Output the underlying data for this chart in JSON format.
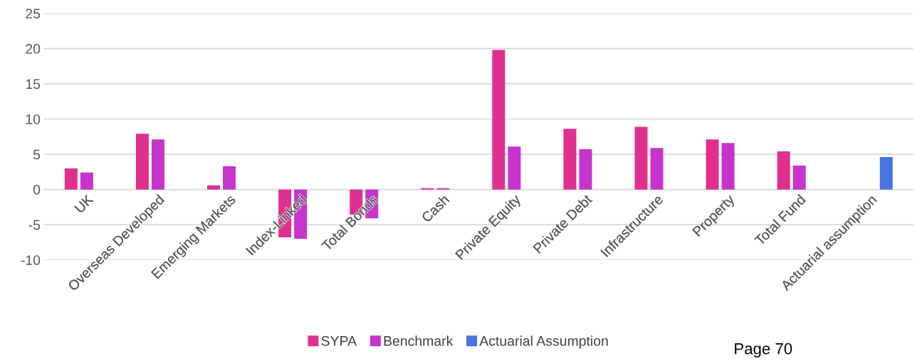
{
  "chart_data": {
    "type": "bar",
    "categories": [
      "UK",
      "Overseas Developed",
      "Emerging Markets",
      "Index-Linked",
      "Total Bonds",
      "Cash",
      "Private Equity",
      "Private Debt",
      "Infrastructure",
      "Property",
      "Total Fund",
      "Actuarial assumption"
    ],
    "series": [
      {
        "name": "SYPA",
        "color": "#e0308f",
        "values": [
          3.0,
          7.9,
          0.6,
          -6.8,
          -3.6,
          0.2,
          19.8,
          8.6,
          8.9,
          7.1,
          5.4,
          null
        ]
      },
      {
        "name": "Benchmark",
        "color": "#c634cc",
        "values": [
          2.4,
          7.1,
          3.3,
          -7.0,
          -4.1,
          0.2,
          6.1,
          5.7,
          5.9,
          6.6,
          3.4,
          null
        ]
      },
      {
        "name": "Actuarial Assumption",
        "color": "#4a74e2",
        "values": [
          null,
          null,
          null,
          null,
          null,
          null,
          null,
          null,
          null,
          null,
          null,
          4.6
        ]
      }
    ],
    "ylim": [
      -10,
      25
    ],
    "yticks": [
      -10,
      -5,
      0,
      5,
      10,
      15,
      20,
      25
    ],
    "grid": "y",
    "legend": "bottom",
    "annotations": [
      "Page 70"
    ]
  }
}
